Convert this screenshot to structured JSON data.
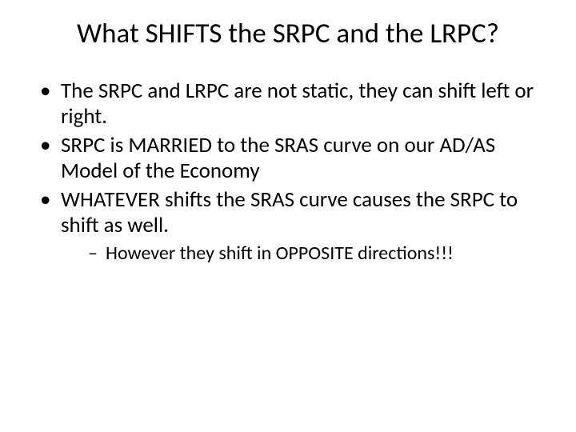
{
  "slide": {
    "title": "What SHIFTS the SRPC and the LRPC?",
    "bullets": [
      "The SRPC and LRPC are not static, they can shift left or right.",
      "SRPC is MARRIED to the SRAS curve on our AD/AS Model of the Economy",
      "WHATEVER shifts the SRAS curve causes the SRPC to shift as well."
    ],
    "sub_bullets": [
      "However they shift in OPPOSITE directions!!!"
    ],
    "colors": {
      "background": "#ffffff",
      "text": "#000000"
    },
    "fonts": {
      "title_size_pt": 35,
      "body_size_pt": 27,
      "sub_size_pt": 24,
      "family": "Calibri"
    }
  }
}
